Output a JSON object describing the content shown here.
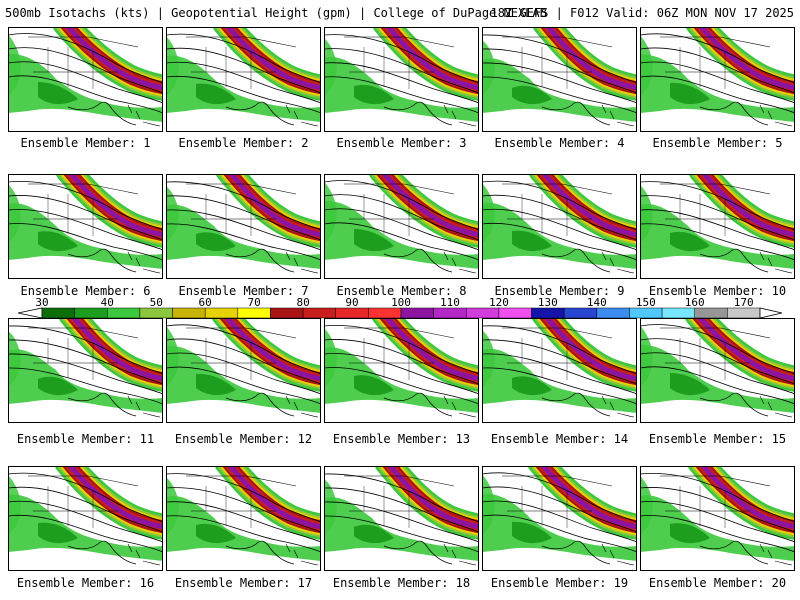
{
  "header": {
    "title_left": "500mb Isotachs (kts) | Geopotential Height (gpm) | College of DuPage NEXLAB",
    "title_right": "18Z GEFS | F012 Valid: 06Z MON NOV 17 2025"
  },
  "panels": [
    {
      "label": "Ensemble Member: 1"
    },
    {
      "label": "Ensemble Member: 2"
    },
    {
      "label": "Ensemble Member: 3"
    },
    {
      "label": "Ensemble Member: 4"
    },
    {
      "label": "Ensemble Member: 5"
    },
    {
      "label": "Ensemble Member: 6"
    },
    {
      "label": "Ensemble Member: 7"
    },
    {
      "label": "Ensemble Member: 8"
    },
    {
      "label": "Ensemble Member: 9"
    },
    {
      "label": "Ensemble Member: 10"
    },
    {
      "label": "Ensemble Member: 11"
    },
    {
      "label": "Ensemble Member: 12"
    },
    {
      "label": "Ensemble Member: 13"
    },
    {
      "label": "Ensemble Member: 14"
    },
    {
      "label": "Ensemble Member: 15"
    },
    {
      "label": "Ensemble Member: 16"
    },
    {
      "label": "Ensemble Member: 17"
    },
    {
      "label": "Ensemble Member: 18"
    },
    {
      "label": "Ensemble Member: 19"
    },
    {
      "label": "Ensemble Member: 20"
    }
  ],
  "colorbar": {
    "tick_labels": [
      "30",
      "40",
      "50",
      "60",
      "70",
      "80",
      "90",
      "100",
      "110",
      "120",
      "130",
      "140",
      "150",
      "160",
      "170"
    ],
    "colors": [
      "#0b6e0b",
      "#1e9e1e",
      "#3cc83c",
      "#8cc63c",
      "#c8b400",
      "#e6d200",
      "#ffff00",
      "#aa1414",
      "#c81e1e",
      "#e62828",
      "#ff3232",
      "#8c14a0",
      "#b428c8",
      "#d23cdc",
      "#f050f0",
      "#1414aa",
      "#2846d2",
      "#3c8cf0",
      "#50c8ff",
      "#78e6ff",
      "#969696",
      "#c8c8c8"
    ]
  }
}
